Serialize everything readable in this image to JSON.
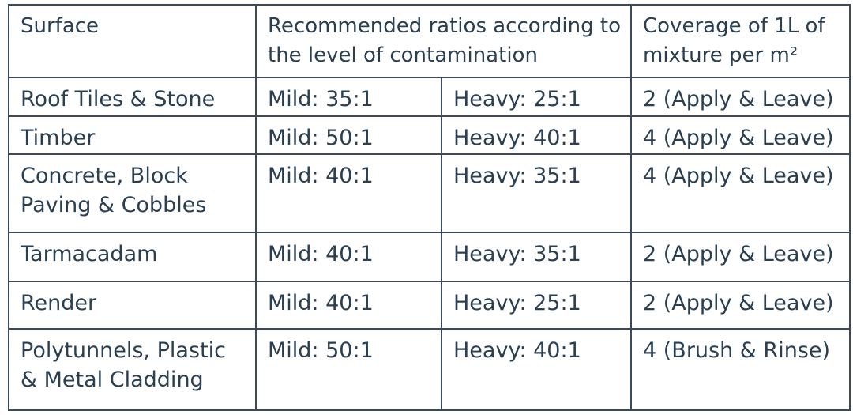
{
  "table": {
    "header": [
      "Surface",
      "Recommended ratios according to the level of contamination",
      "Coverage of 1L of mixture per m²"
    ],
    "rows": [
      [
        "Roof Tiles & Stone",
        "Mild: 35:1",
        "Heavy: 25:1",
        "2 (Apply & Leave)"
      ],
      [
        "Timber",
        "Mild: 50:1",
        "Heavy: 40:1",
        "4 (Apply & Leave)"
      ],
      [
        "Concrete, Block Paving & Cobbles",
        "Mild: 40:1",
        "Heavy: 35:1",
        "4 (Apply & Leave)"
      ],
      [
        "Tarmacadam",
        "Mild: 40:1",
        "Heavy: 35:1",
        "2 (Apply & Leave)"
      ],
      [
        "Render",
        "Mild: 40:1",
        "Heavy: 25:1",
        "2 (Apply & Leave)"
      ],
      [
        "Polytunnels, Plastic & Metal Cladding",
        "Mild: 50:1",
        "Heavy: 40:1",
        "4 (Brush & Rinse)"
      ]
    ]
  }
}
